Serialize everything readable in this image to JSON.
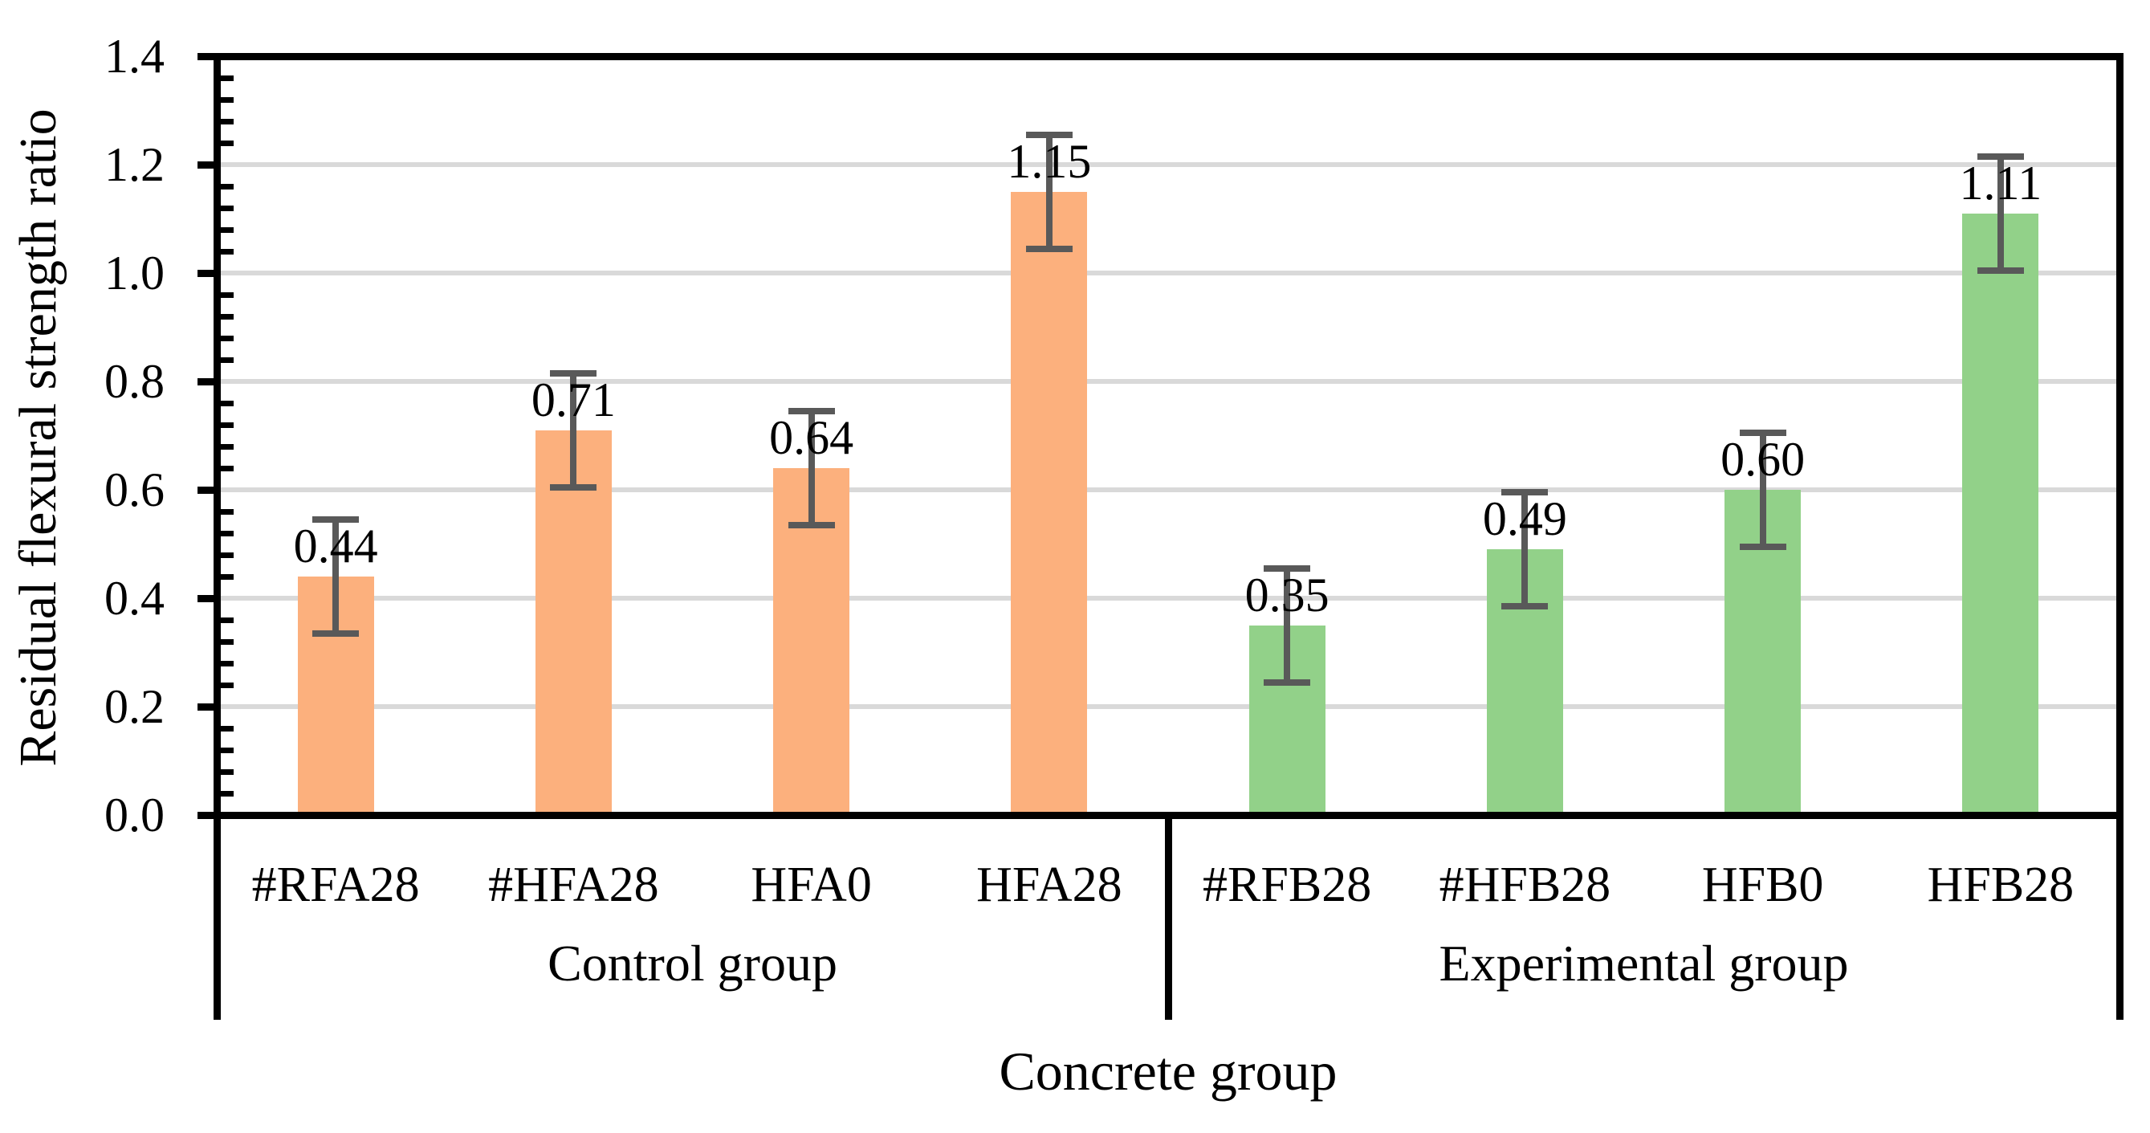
{
  "chart_data": {
    "type": "bar",
    "title": "",
    "xlabel": "Concrete group",
    "ylabel": "Residual flexural strength ratio",
    "ylim": [
      0.0,
      1.4
    ],
    "y_major_step": 0.2,
    "y_minor_step": 0.04,
    "y_tick_labels": [
      "0.0",
      "0.2",
      "0.4",
      "0.6",
      "0.8",
      "1.0",
      "1.2",
      "1.4"
    ],
    "grid": true,
    "legend": "none",
    "categories": [
      "#RFA28",
      "#HFA28",
      "HFA0",
      "HFA28",
      "#RFB28",
      "#HFB28",
      "HFB0",
      "HFB28"
    ],
    "values": [
      0.44,
      0.71,
      0.64,
      1.15,
      0.35,
      0.49,
      0.6,
      1.11
    ],
    "data_labels": [
      "0.44",
      "0.71",
      "0.64",
      "1.15",
      "0.35",
      "0.49",
      "0.60",
      "1.11"
    ],
    "error_bars_plus": [
      0.105,
      0.105,
      0.105,
      0.105,
      0.105,
      0.105,
      0.105,
      0.105
    ],
    "error_bars_minus": [
      0.105,
      0.105,
      0.105,
      0.105,
      0.105,
      0.105,
      0.105,
      0.105
    ],
    "groups": [
      {
        "label": "Control group",
        "first_category_index": 0,
        "last_category_index": 3,
        "bar_color": "#FCB07D"
      },
      {
        "label": "Experimental group",
        "first_category_index": 4,
        "last_category_index": 7,
        "bar_color": "#92D189"
      }
    ],
    "colors": {
      "control_bars": "#FCB07D",
      "experimental_bars": "#92D189",
      "error_bar": "#595959",
      "gridline": "#D9D9D9",
      "axis_line": "#000000",
      "text": "#000000",
      "background": "#FFFFFF"
    }
  }
}
